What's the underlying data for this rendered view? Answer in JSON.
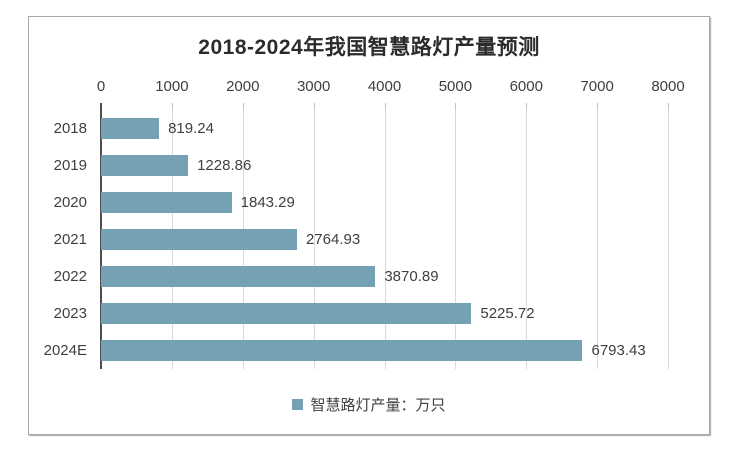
{
  "chart_data": {
    "type": "bar",
    "orientation": "horizontal",
    "title": "2018-2024年我国智慧路灯产量预测",
    "categories": [
      "2018",
      "2019",
      "2020",
      "2021",
      "2022",
      "2023",
      "2024E"
    ],
    "values": [
      819.24,
      1228.86,
      1843.29,
      2764.93,
      3870.89,
      5225.72,
      6793.43
    ],
    "series_name": "智慧路灯产量：万只",
    "x_ticks": [
      0,
      1000,
      2000,
      3000,
      4000,
      5000,
      6000,
      7000,
      8000
    ],
    "xlim": [
      0,
      8000
    ],
    "grid": true,
    "data_labels": true,
    "legend_position": "bottom"
  },
  "colors": {
    "bar": "#74A1B3",
    "gridline": "#D9D9D9",
    "axis_line": "#4D4D4D",
    "label_text": "#3F3F3F",
    "title_text": "#2B2B2B",
    "panel_border": "#A8A8A8",
    "background": "#FFFFFF"
  }
}
